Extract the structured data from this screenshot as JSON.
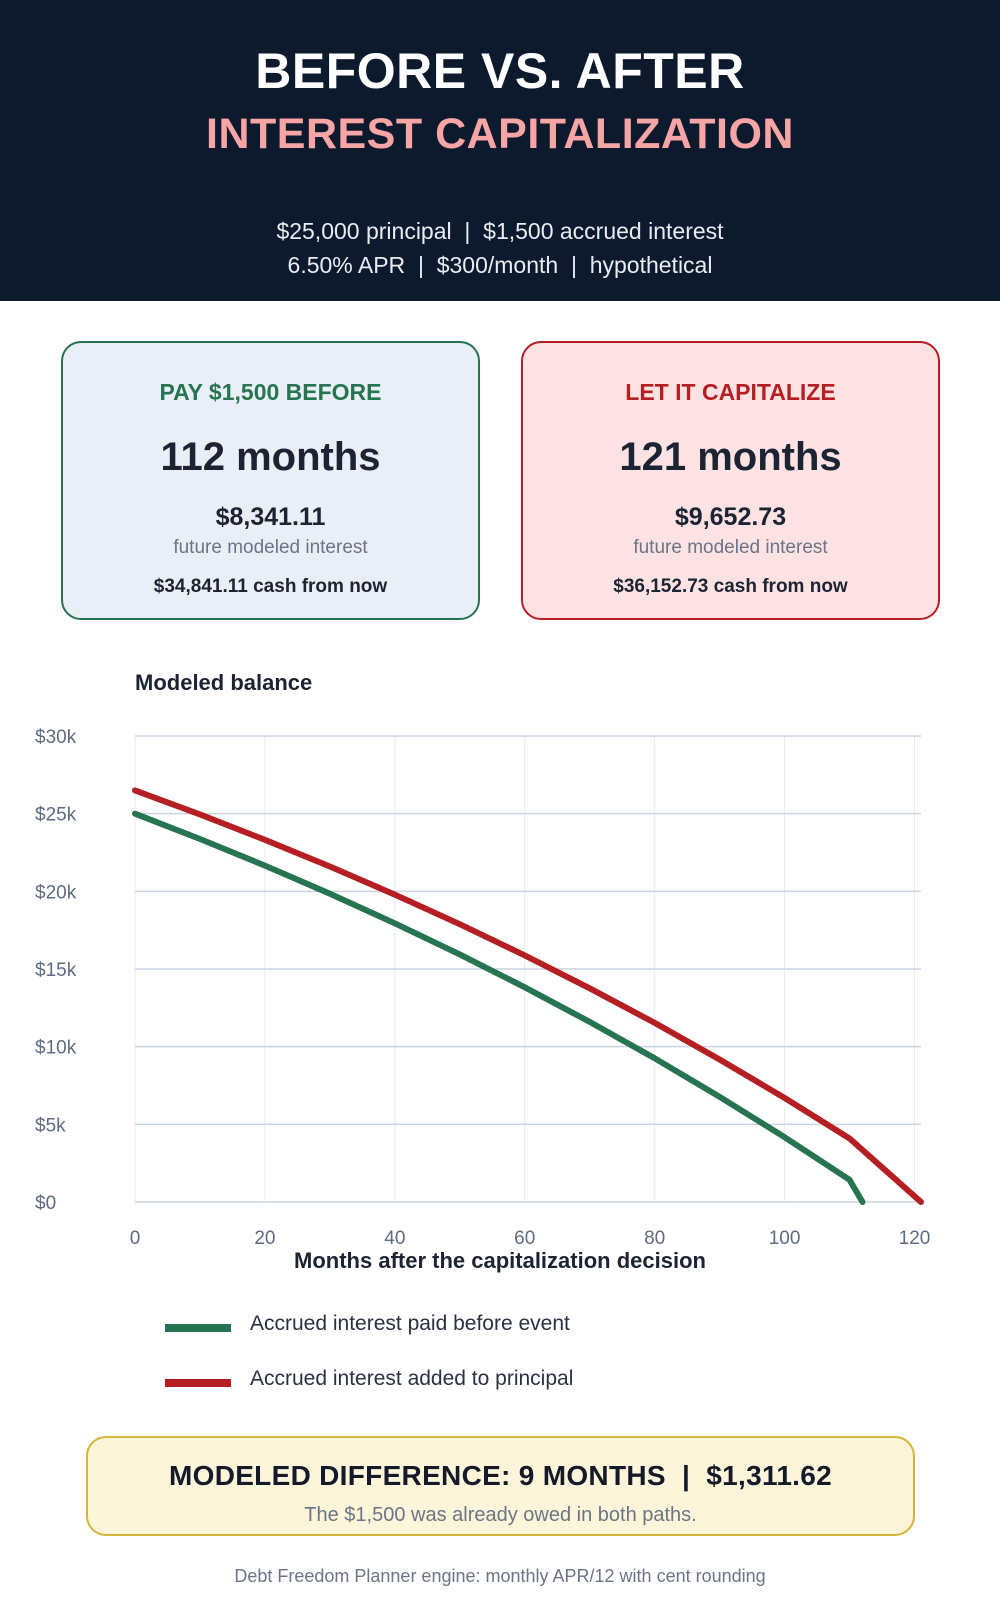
{
  "header": {
    "title": "BEFORE VS. AFTER",
    "subtitle": "INTEREST CAPITALIZATION",
    "line1": "$25,000 principal  |  $1,500 accrued interest",
    "line2": "6.50% APR  |  $300/month  |  hypothetical"
  },
  "cards": {
    "left": {
      "label": "PAY $1,500 BEFORE",
      "months": "112 months",
      "interest": "$8,341.11",
      "caption": "future modeled interest",
      "cash": "$34,841.11 cash from now"
    },
    "right": {
      "label": "LET IT CAPITALIZE",
      "months": "121 months",
      "interest": "$9,652.73",
      "caption": "future modeled interest",
      "cash": "$36,152.73 cash from now"
    }
  },
  "chart_data": {
    "type": "line",
    "title": "Modeled balance",
    "xlabel": "Months after the capitalization decision",
    "ylabel": "",
    "xlim": [
      0,
      121
    ],
    "ylim": [
      0,
      30000
    ],
    "x_ticks": [
      0,
      20,
      40,
      60,
      80,
      100,
      120
    ],
    "y_ticks": [
      0,
      5000,
      10000,
      15000,
      20000,
      25000,
      30000
    ],
    "y_tick_labels": [
      "$0",
      "$5k",
      "$10k",
      "$15k",
      "$20k",
      "$25k",
      "$30k"
    ],
    "grid": true,
    "legend_position": "bottom-left",
    "series": [
      {
        "name": "Accrued interest paid before event",
        "color": "#277450",
        "x": [
          0,
          10,
          20,
          30,
          40,
          50,
          60,
          70,
          80,
          90,
          100,
          110,
          112
        ],
        "y": [
          25000,
          23372,
          21656,
          19850,
          17944,
          15937,
          13822,
          11594,
          9248,
          6775,
          4170,
          1426,
          0
        ]
      },
      {
        "name": "Accrued interest added to principal",
        "color": "#b51f24",
        "x": [
          0,
          10,
          20,
          30,
          40,
          50,
          60,
          70,
          80,
          90,
          100,
          110,
          121
        ],
        "y": [
          26500,
          24951,
          23320,
          21601,
          19791,
          17883,
          15874,
          13757,
          11527,
          9177,
          6702,
          4093,
          0
        ]
      }
    ]
  },
  "banner": {
    "title": "MODELED DIFFERENCE: 9 MONTHS  |  $1,311.62",
    "note": "The $1,500 was already owed in both paths."
  },
  "footer": "Debt Freedom Planner engine: monthly APR/12 with cent rounding"
}
